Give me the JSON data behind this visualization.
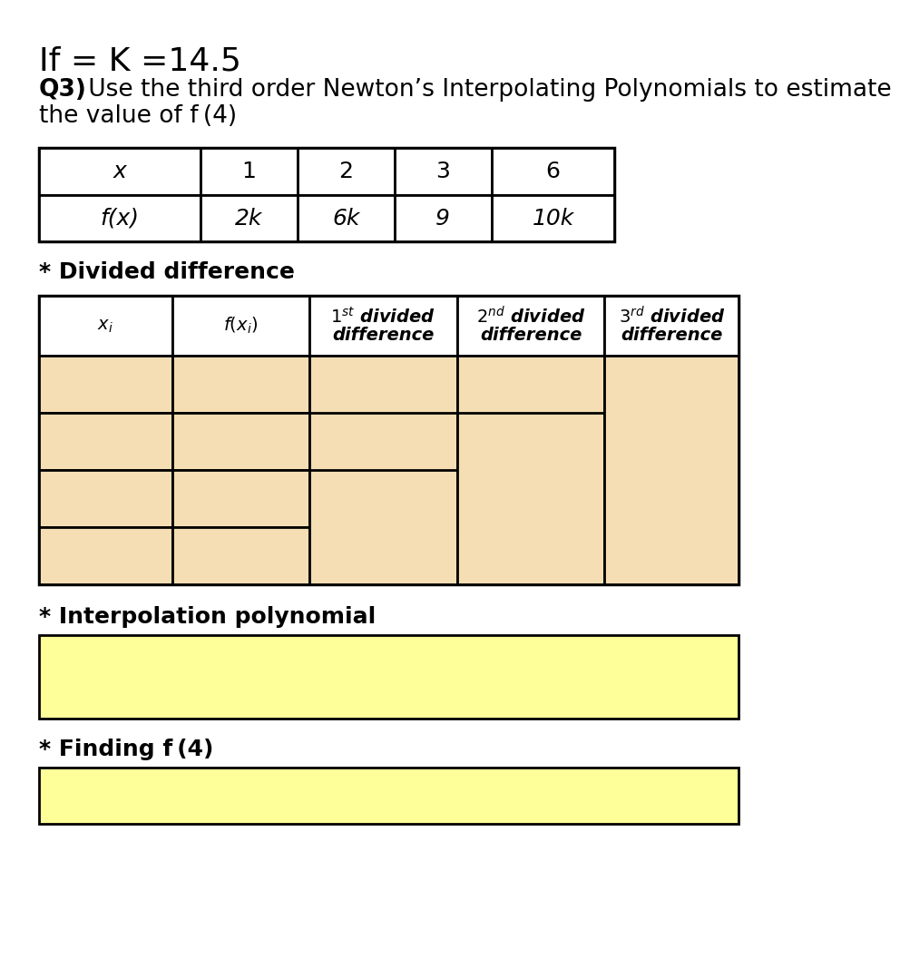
{
  "title_line": "If = K =14.5",
  "question_line1": "Q3) Use the third order Newton’s Interpolating Polynomials to estimate",
  "question_line2": "the value of f (4)",
  "data_table_headers": [
    "x",
    "1",
    "2",
    "3",
    "6"
  ],
  "data_table_row": [
    "f(x)",
    "2k",
    "6k",
    "9",
    "10k"
  ],
  "divided_diff_label": "* Divided difference",
  "interp_label": "* Interpolation polynomial",
  "finding_label": "* Finding f (4)",
  "bg_color": "#ffffff",
  "table_fill_color": "#F5DEB3",
  "light_yellow": "#FFFF99"
}
